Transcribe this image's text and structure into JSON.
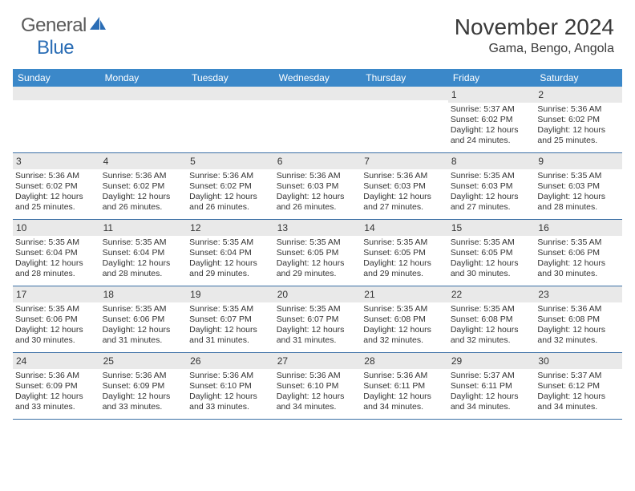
{
  "brand": {
    "general": "General",
    "blue": "Blue"
  },
  "title": "November 2024",
  "location": "Gama, Bengo, Angola",
  "colors": {
    "header_bg": "#3b88c9",
    "header_text": "#ffffff",
    "row_border": "#3b6fa5",
    "daynum_bg": "#e9e9e9",
    "text": "#333333",
    "logo_gray": "#5a5a5a",
    "logo_blue": "#2a6db5"
  },
  "day_names": [
    "Sunday",
    "Monday",
    "Tuesday",
    "Wednesday",
    "Thursday",
    "Friday",
    "Saturday"
  ],
  "weeks": [
    [
      {
        "empty": true
      },
      {
        "empty": true
      },
      {
        "empty": true
      },
      {
        "empty": true
      },
      {
        "empty": true
      },
      {
        "num": "1",
        "sunrise": "Sunrise: 5:37 AM",
        "sunset": "Sunset: 6:02 PM",
        "day1": "Daylight: 12 hours",
        "day2": "and 24 minutes."
      },
      {
        "num": "2",
        "sunrise": "Sunrise: 5:36 AM",
        "sunset": "Sunset: 6:02 PM",
        "day1": "Daylight: 12 hours",
        "day2": "and 25 minutes."
      }
    ],
    [
      {
        "num": "3",
        "sunrise": "Sunrise: 5:36 AM",
        "sunset": "Sunset: 6:02 PM",
        "day1": "Daylight: 12 hours",
        "day2": "and 25 minutes."
      },
      {
        "num": "4",
        "sunrise": "Sunrise: 5:36 AM",
        "sunset": "Sunset: 6:02 PM",
        "day1": "Daylight: 12 hours",
        "day2": "and 26 minutes."
      },
      {
        "num": "5",
        "sunrise": "Sunrise: 5:36 AM",
        "sunset": "Sunset: 6:02 PM",
        "day1": "Daylight: 12 hours",
        "day2": "and 26 minutes."
      },
      {
        "num": "6",
        "sunrise": "Sunrise: 5:36 AM",
        "sunset": "Sunset: 6:03 PM",
        "day1": "Daylight: 12 hours",
        "day2": "and 26 minutes."
      },
      {
        "num": "7",
        "sunrise": "Sunrise: 5:36 AM",
        "sunset": "Sunset: 6:03 PM",
        "day1": "Daylight: 12 hours",
        "day2": "and 27 minutes."
      },
      {
        "num": "8",
        "sunrise": "Sunrise: 5:35 AM",
        "sunset": "Sunset: 6:03 PM",
        "day1": "Daylight: 12 hours",
        "day2": "and 27 minutes."
      },
      {
        "num": "9",
        "sunrise": "Sunrise: 5:35 AM",
        "sunset": "Sunset: 6:03 PM",
        "day1": "Daylight: 12 hours",
        "day2": "and 28 minutes."
      }
    ],
    [
      {
        "num": "10",
        "sunrise": "Sunrise: 5:35 AM",
        "sunset": "Sunset: 6:04 PM",
        "day1": "Daylight: 12 hours",
        "day2": "and 28 minutes."
      },
      {
        "num": "11",
        "sunrise": "Sunrise: 5:35 AM",
        "sunset": "Sunset: 6:04 PM",
        "day1": "Daylight: 12 hours",
        "day2": "and 28 minutes."
      },
      {
        "num": "12",
        "sunrise": "Sunrise: 5:35 AM",
        "sunset": "Sunset: 6:04 PM",
        "day1": "Daylight: 12 hours",
        "day2": "and 29 minutes."
      },
      {
        "num": "13",
        "sunrise": "Sunrise: 5:35 AM",
        "sunset": "Sunset: 6:05 PM",
        "day1": "Daylight: 12 hours",
        "day2": "and 29 minutes."
      },
      {
        "num": "14",
        "sunrise": "Sunrise: 5:35 AM",
        "sunset": "Sunset: 6:05 PM",
        "day1": "Daylight: 12 hours",
        "day2": "and 29 minutes."
      },
      {
        "num": "15",
        "sunrise": "Sunrise: 5:35 AM",
        "sunset": "Sunset: 6:05 PM",
        "day1": "Daylight: 12 hours",
        "day2": "and 30 minutes."
      },
      {
        "num": "16",
        "sunrise": "Sunrise: 5:35 AM",
        "sunset": "Sunset: 6:06 PM",
        "day1": "Daylight: 12 hours",
        "day2": "and 30 minutes."
      }
    ],
    [
      {
        "num": "17",
        "sunrise": "Sunrise: 5:35 AM",
        "sunset": "Sunset: 6:06 PM",
        "day1": "Daylight: 12 hours",
        "day2": "and 30 minutes."
      },
      {
        "num": "18",
        "sunrise": "Sunrise: 5:35 AM",
        "sunset": "Sunset: 6:06 PM",
        "day1": "Daylight: 12 hours",
        "day2": "and 31 minutes."
      },
      {
        "num": "19",
        "sunrise": "Sunrise: 5:35 AM",
        "sunset": "Sunset: 6:07 PM",
        "day1": "Daylight: 12 hours",
        "day2": "and 31 minutes."
      },
      {
        "num": "20",
        "sunrise": "Sunrise: 5:35 AM",
        "sunset": "Sunset: 6:07 PM",
        "day1": "Daylight: 12 hours",
        "day2": "and 31 minutes."
      },
      {
        "num": "21",
        "sunrise": "Sunrise: 5:35 AM",
        "sunset": "Sunset: 6:08 PM",
        "day1": "Daylight: 12 hours",
        "day2": "and 32 minutes."
      },
      {
        "num": "22",
        "sunrise": "Sunrise: 5:35 AM",
        "sunset": "Sunset: 6:08 PM",
        "day1": "Daylight: 12 hours",
        "day2": "and 32 minutes."
      },
      {
        "num": "23",
        "sunrise": "Sunrise: 5:36 AM",
        "sunset": "Sunset: 6:08 PM",
        "day1": "Daylight: 12 hours",
        "day2": "and 32 minutes."
      }
    ],
    [
      {
        "num": "24",
        "sunrise": "Sunrise: 5:36 AM",
        "sunset": "Sunset: 6:09 PM",
        "day1": "Daylight: 12 hours",
        "day2": "and 33 minutes."
      },
      {
        "num": "25",
        "sunrise": "Sunrise: 5:36 AM",
        "sunset": "Sunset: 6:09 PM",
        "day1": "Daylight: 12 hours",
        "day2": "and 33 minutes."
      },
      {
        "num": "26",
        "sunrise": "Sunrise: 5:36 AM",
        "sunset": "Sunset: 6:10 PM",
        "day1": "Daylight: 12 hours",
        "day2": "and 33 minutes."
      },
      {
        "num": "27",
        "sunrise": "Sunrise: 5:36 AM",
        "sunset": "Sunset: 6:10 PM",
        "day1": "Daylight: 12 hours",
        "day2": "and 34 minutes."
      },
      {
        "num": "28",
        "sunrise": "Sunrise: 5:36 AM",
        "sunset": "Sunset: 6:11 PM",
        "day1": "Daylight: 12 hours",
        "day2": "and 34 minutes."
      },
      {
        "num": "29",
        "sunrise": "Sunrise: 5:37 AM",
        "sunset": "Sunset: 6:11 PM",
        "day1": "Daylight: 12 hours",
        "day2": "and 34 minutes."
      },
      {
        "num": "30",
        "sunrise": "Sunrise: 5:37 AM",
        "sunset": "Sunset: 6:12 PM",
        "day1": "Daylight: 12 hours",
        "day2": "and 34 minutes."
      }
    ]
  ]
}
